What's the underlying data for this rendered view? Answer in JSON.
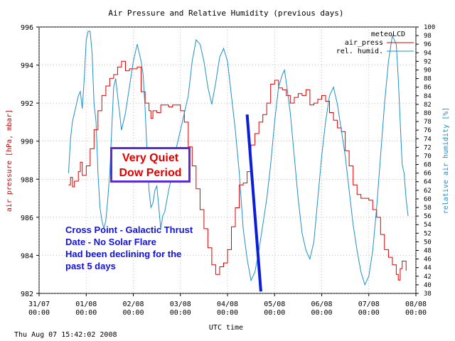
{
  "chart_data": {
    "type": "line",
    "title": "Air Pressure and Relative Humidity (previous days)",
    "xlabel": "UTC time",
    "ylabel_left": "air pressure [hPa, mbar]",
    "ylabel_right": "relative air humidity [%]",
    "ylim_left": [
      982,
      996
    ],
    "ylim_right": [
      38,
      100
    ],
    "xlim_hours": [
      0,
      192
    ],
    "x_ticks": [
      {
        "top": "31/07",
        "bottom": "00:00"
      },
      {
        "top": "01/08",
        "bottom": "00:00"
      },
      {
        "top": "02/08",
        "bottom": "00:00"
      },
      {
        "top": "03/08",
        "bottom": "00:00"
      },
      {
        "top": "04/08",
        "bottom": "00:00"
      },
      {
        "top": "05/08",
        "bottom": "00:00"
      },
      {
        "top": "06/08",
        "bottom": "00:00"
      },
      {
        "top": "07/08",
        "bottom": "00:00"
      },
      {
        "top": "08/08",
        "bottom": "00:00"
      }
    ],
    "left_ticks": [
      982,
      984,
      986,
      988,
      990,
      992,
      994,
      996
    ],
    "right_ticks": [
      38,
      40,
      42,
      44,
      46,
      48,
      50,
      52,
      54,
      56,
      58,
      60,
      62,
      64,
      66,
      68,
      70,
      72,
      74,
      76,
      78,
      80,
      82,
      84,
      86,
      88,
      90,
      92,
      94,
      96,
      98,
      100
    ],
    "legend": {
      "title": "meteoLCD",
      "position": "top-right",
      "entries": [
        {
          "label": "air_press",
          "color": "#dd0000"
        },
        {
          "label": "rel. humid.",
          "color": "#1e90c8"
        }
      ]
    },
    "series": [
      {
        "name": "air_press",
        "axis": "left",
        "color": "#dd0000",
        "points": [
          [
            15,
            987.7
          ],
          [
            16,
            988.1
          ],
          [
            17,
            987.6
          ],
          [
            18,
            987.9
          ],
          [
            20,
            988.4
          ],
          [
            21,
            988.9
          ],
          [
            22,
            988.2
          ],
          [
            24,
            988.7
          ],
          [
            26,
            989.6
          ],
          [
            28,
            990.6
          ],
          [
            30,
            991.6
          ],
          [
            32,
            992.4
          ],
          [
            34,
            992.9
          ],
          [
            36,
            993.3
          ],
          [
            38,
            993.5
          ],
          [
            40,
            993.9
          ],
          [
            42,
            994.2
          ],
          [
            44,
            993.7
          ],
          [
            46,
            993.8
          ],
          [
            48,
            993.8
          ],
          [
            50,
            993.9
          ],
          [
            52,
            992.6
          ],
          [
            54,
            992.0
          ],
          [
            56,
            991.6
          ],
          [
            57,
            991.2
          ],
          [
            58,
            991.6
          ],
          [
            60,
            991.5
          ],
          [
            62,
            991.9
          ],
          [
            64,
            991.9
          ],
          [
            66,
            991.8
          ],
          [
            68,
            991.9
          ],
          [
            70,
            991.9
          ],
          [
            72,
            991.6
          ],
          [
            74,
            991.0
          ],
          [
            76,
            989.7
          ],
          [
            78,
            988.7
          ],
          [
            80,
            987.5
          ],
          [
            82,
            986.4
          ],
          [
            84,
            985.4
          ],
          [
            86,
            984.4
          ],
          [
            88,
            983.5
          ],
          [
            90,
            983.0
          ],
          [
            92,
            983.4
          ],
          [
            94,
            983.6
          ],
          [
            96,
            984.3
          ],
          [
            98,
            985.5
          ],
          [
            100,
            986.5
          ],
          [
            102,
            987.7
          ],
          [
            104,
            987.8
          ],
          [
            106,
            988.4
          ],
          [
            108,
            989.8
          ],
          [
            110,
            990.4
          ],
          [
            112,
            991.0
          ],
          [
            114,
            991.4
          ],
          [
            116,
            992.0
          ],
          [
            118,
            993.0
          ],
          [
            120,
            993.2
          ],
          [
            122,
            992.8
          ],
          [
            124,
            992.7
          ],
          [
            126,
            992.4
          ],
          [
            128,
            992.0
          ],
          [
            130,
            992.3
          ],
          [
            132,
            992.5
          ],
          [
            134,
            992.4
          ],
          [
            136,
            992.7
          ],
          [
            138,
            991.9
          ],
          [
            140,
            992.0
          ],
          [
            142,
            992.2
          ],
          [
            144,
            992.4
          ],
          [
            146,
            992.1
          ],
          [
            148,
            991.5
          ],
          [
            150,
            991.1
          ],
          [
            152,
            990.7
          ],
          [
            154,
            990.5
          ],
          [
            156,
            989.5
          ],
          [
            158,
            988.7
          ],
          [
            160,
            987.7
          ],
          [
            162,
            987.2
          ],
          [
            164,
            987.0
          ],
          [
            166,
            987.0
          ],
          [
            168,
            986.9
          ],
          [
            170,
            986.4
          ],
          [
            172,
            986.0
          ],
          [
            174,
            985.1
          ],
          [
            176,
            984.3
          ],
          [
            178,
            983.9
          ],
          [
            180,
            983.5
          ],
          [
            182,
            983.0
          ],
          [
            183,
            982.7
          ],
          [
            184,
            983.3
          ],
          [
            185,
            983.7
          ],
          [
            186,
            983.7
          ],
          [
            187,
            983.2
          ]
        ]
      },
      {
        "name": "rel. humid.",
        "axis": "right",
        "color": "#1e90c8",
        "points": [
          [
            15,
            66
          ],
          [
            16,
            74
          ],
          [
            17,
            78
          ],
          [
            18,
            80
          ],
          [
            20,
            84
          ],
          [
            21,
            85
          ],
          [
            22,
            81
          ],
          [
            23,
            88
          ],
          [
            24,
            97
          ],
          [
            25,
            99
          ],
          [
            26,
            99
          ],
          [
            27,
            94
          ],
          [
            28,
            82
          ],
          [
            29,
            78
          ],
          [
            30,
            66
          ],
          [
            31,
            58
          ],
          [
            32,
            55
          ],
          [
            33,
            53
          ],
          [
            34,
            55
          ],
          [
            35,
            60
          ],
          [
            36,
            66
          ],
          [
            37,
            76
          ],
          [
            38,
            86
          ],
          [
            39,
            88
          ],
          [
            40,
            84
          ],
          [
            41,
            80
          ],
          [
            42,
            76
          ],
          [
            44,
            80
          ],
          [
            46,
            86
          ],
          [
            48,
            92
          ],
          [
            50,
            96
          ],
          [
            52,
            92
          ],
          [
            53,
            89
          ],
          [
            54,
            81
          ],
          [
            55,
            71
          ],
          [
            56,
            62
          ],
          [
            57,
            58
          ],
          [
            58,
            59
          ],
          [
            59,
            62
          ],
          [
            60,
            63
          ],
          [
            61,
            58
          ],
          [
            62,
            53
          ],
          [
            63,
            56
          ],
          [
            64,
            57
          ],
          [
            66,
            62
          ],
          [
            68,
            66
          ],
          [
            70,
            72
          ],
          [
            72,
            76
          ],
          [
            74,
            80
          ],
          [
            76,
            84
          ],
          [
            78,
            92
          ],
          [
            80,
            97
          ],
          [
            82,
            96
          ],
          [
            84,
            92
          ],
          [
            86,
            86
          ],
          [
            88,
            82
          ],
          [
            90,
            87
          ],
          [
            92,
            93
          ],
          [
            94,
            95
          ],
          [
            96,
            92
          ],
          [
            98,
            84
          ],
          [
            100,
            76
          ],
          [
            102,
            66
          ],
          [
            104,
            53
          ],
          [
            106,
            46
          ],
          [
            108,
            41
          ],
          [
            110,
            43
          ],
          [
            112,
            48
          ],
          [
            114,
            54
          ],
          [
            116,
            60
          ],
          [
            118,
            68
          ],
          [
            120,
            78
          ],
          [
            122,
            86
          ],
          [
            124,
            89
          ],
          [
            125,
            90
          ],
          [
            126,
            87
          ],
          [
            128,
            80
          ],
          [
            130,
            70
          ],
          [
            132,
            60
          ],
          [
            134,
            52
          ],
          [
            136,
            48
          ],
          [
            138,
            46
          ],
          [
            140,
            50
          ],
          [
            142,
            60
          ],
          [
            144,
            70
          ],
          [
            146,
            78
          ],
          [
            148,
            84
          ],
          [
            150,
            86
          ],
          [
            152,
            82
          ],
          [
            154,
            76
          ],
          [
            156,
            70
          ],
          [
            158,
            62
          ],
          [
            160,
            54
          ],
          [
            162,
            48
          ],
          [
            164,
            43
          ],
          [
            166,
            40
          ],
          [
            168,
            42
          ],
          [
            170,
            48
          ],
          [
            172,
            58
          ],
          [
            174,
            70
          ],
          [
            176,
            82
          ],
          [
            178,
            92
          ],
          [
            180,
            98
          ],
          [
            182,
            96
          ],
          [
            183,
            88
          ],
          [
            184,
            78
          ],
          [
            185,
            68
          ],
          [
            186,
            66
          ],
          [
            187,
            60
          ],
          [
            188,
            56
          ]
        ]
      }
    ],
    "annotation_line": {
      "color": "#0a1fd6",
      "from": {
        "hours": 106,
        "pressure": 991.4
      },
      "to": {
        "hours": 113,
        "pressure": 982.1
      }
    }
  },
  "annotations": {
    "quiet_box_line1": "Very Quiet",
    "quiet_box_line2": "Dow Period",
    "blue_note_lines": [
      "Cross Point - Galactic Thrust",
      "Date - No Solar Flare",
      "Had been declining for the",
      "past 5 days"
    ]
  },
  "footer": {
    "timestamp": "Thu Aug 07 15:42:02 2008"
  }
}
